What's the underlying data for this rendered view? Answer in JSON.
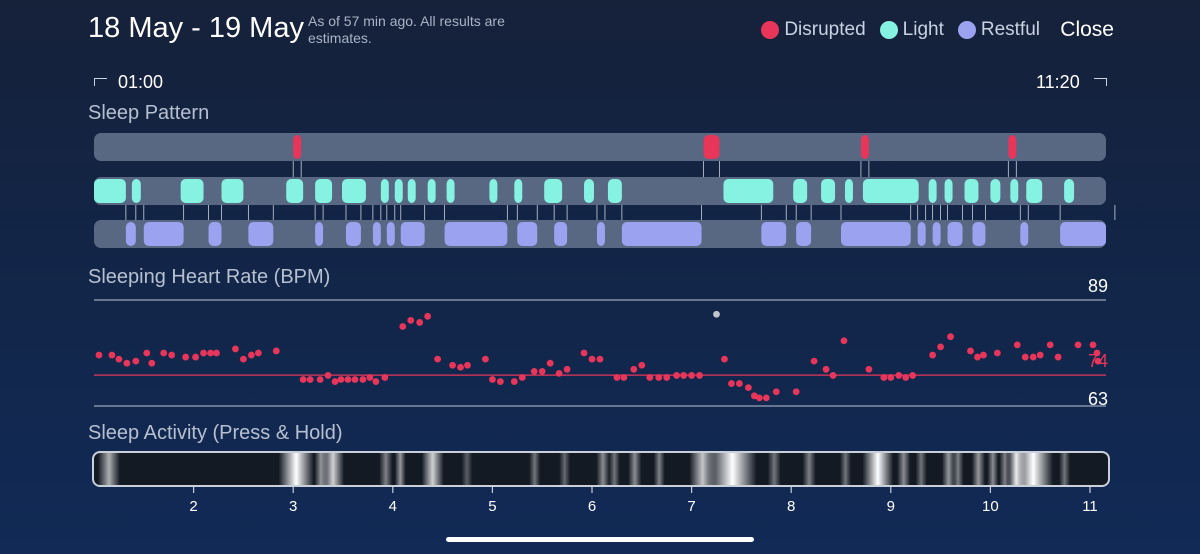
{
  "header": {
    "title": "18 May - 19 May",
    "note": "As of 57 min ago. All results are estimates.",
    "close_label": "Close"
  },
  "legend": [
    {
      "label": "Disrupted",
      "color": "#e8355a"
    },
    {
      "label": "Light",
      "color": "#86f2e2"
    },
    {
      "label": "Restful",
      "color": "#9ba3f0"
    }
  ],
  "time_range": {
    "start": "01:00",
    "end": "11:20"
  },
  "sleep_pattern": {
    "title": "Sleep Pattern",
    "colors": {
      "track": "#586883",
      "disrupted": "#e8355a",
      "light": "#86f2e2",
      "restful": "#9ba3f0"
    },
    "segments": {
      "disrupted": [
        [
          2.0,
          2.08
        ],
        [
          6.12,
          6.28
        ],
        [
          7.7,
          7.78
        ],
        [
          9.18,
          9.26
        ]
      ],
      "light": [
        [
          0.0,
          0.32
        ],
        [
          0.38,
          0.47
        ],
        [
          0.87,
          1.1
        ],
        [
          1.28,
          1.5
        ],
        [
          1.93,
          2.1
        ],
        [
          2.22,
          2.39
        ],
        [
          2.49,
          2.73
        ],
        [
          2.88,
          2.96
        ],
        [
          3.02,
          3.1
        ],
        [
          3.15,
          3.23
        ],
        [
          3.35,
          3.43
        ],
        [
          3.54,
          3.62
        ],
        [
          3.97,
          4.05
        ],
        [
          4.22,
          4.3
        ],
        [
          4.52,
          4.7
        ],
        [
          4.92,
          5.02
        ],
        [
          5.16,
          5.3
        ],
        [
          6.32,
          6.82
        ],
        [
          7.02,
          7.16
        ],
        [
          7.3,
          7.44
        ],
        [
          7.54,
          7.62
        ],
        [
          7.72,
          8.28
        ],
        [
          8.38,
          8.46
        ],
        [
          8.54,
          8.62
        ],
        [
          8.74,
          8.88
        ],
        [
          9.0,
          9.1
        ],
        [
          9.2,
          9.28
        ],
        [
          9.36,
          9.52
        ],
        [
          9.74,
          9.84
        ],
        [
          10.18,
          10.26
        ]
      ],
      "restful": [
        [
          0.32,
          0.42
        ],
        [
          0.5,
          0.9
        ],
        [
          1.15,
          1.28
        ],
        [
          1.55,
          1.8
        ],
        [
          2.22,
          2.3
        ],
        [
          2.53,
          2.68
        ],
        [
          2.8,
          2.88
        ],
        [
          2.94,
          3.02
        ],
        [
          3.08,
          3.32
        ],
        [
          3.52,
          4.15
        ],
        [
          4.25,
          4.45
        ],
        [
          4.62,
          4.75
        ],
        [
          5.05,
          5.13
        ],
        [
          5.3,
          6.1
        ],
        [
          6.7,
          6.95
        ],
        [
          7.05,
          7.2
        ],
        [
          7.5,
          8.2
        ],
        [
          8.27,
          8.35
        ],
        [
          8.42,
          8.5
        ],
        [
          8.57,
          8.72
        ],
        [
          8.82,
          8.95
        ],
        [
          9.3,
          9.38
        ],
        [
          9.7,
          10.25
        ]
      ]
    }
  },
  "heart_rate": {
    "title": "Sleeping Heart Rate (BPM)",
    "max_label": "89",
    "avg_label": "74",
    "min_label": "63",
    "color": "#e8355a",
    "grid_color": "#9aa5b8",
    "outlier": {
      "x": 6.25,
      "y": 85.5,
      "color": "#bfc4cc"
    },
    "points": [
      [
        0.05,
        75.5
      ],
      [
        0.18,
        75.5
      ],
      [
        0.25,
        74.5
      ],
      [
        0.33,
        73.5
      ],
      [
        0.42,
        74
      ],
      [
        0.53,
        76
      ],
      [
        0.58,
        73.5
      ],
      [
        0.7,
        76
      ],
      [
        0.78,
        75.5
      ],
      [
        0.92,
        75
      ],
      [
        1.02,
        75
      ],
      [
        1.1,
        76
      ],
      [
        1.17,
        76
      ],
      [
        1.23,
        76
      ],
      [
        1.42,
        77
      ],
      [
        1.5,
        74.5
      ],
      [
        1.58,
        75.5
      ],
      [
        1.65,
        76
      ],
      [
        1.83,
        76.5
      ],
      [
        2.1,
        69.5
      ],
      [
        2.17,
        69.5
      ],
      [
        2.27,
        69.5
      ],
      [
        2.35,
        70.5
      ],
      [
        2.42,
        69
      ],
      [
        2.48,
        69.5
      ],
      [
        2.55,
        69.5
      ],
      [
        2.62,
        69.5
      ],
      [
        2.7,
        69.5
      ],
      [
        2.77,
        70
      ],
      [
        2.83,
        69
      ],
      [
        2.92,
        70
      ],
      [
        3.1,
        82.5
      ],
      [
        3.18,
        84
      ],
      [
        3.27,
        83.5
      ],
      [
        3.35,
        85
      ],
      [
        3.45,
        74.5
      ],
      [
        3.6,
        73
      ],
      [
        3.68,
        72.5
      ],
      [
        3.75,
        73
      ],
      [
        3.93,
        74.5
      ],
      [
        4.0,
        69.5
      ],
      [
        4.08,
        69
      ],
      [
        4.22,
        69
      ],
      [
        4.3,
        70
      ],
      [
        4.42,
        71.5
      ],
      [
        4.5,
        71.5
      ],
      [
        4.58,
        73.5
      ],
      [
        4.67,
        71
      ],
      [
        4.75,
        72
      ],
      [
        4.92,
        76
      ],
      [
        5.0,
        74.5
      ],
      [
        5.08,
        74.5
      ],
      [
        5.25,
        70
      ],
      [
        5.32,
        70
      ],
      [
        5.42,
        72
      ],
      [
        5.5,
        73
      ],
      [
        5.58,
        70
      ],
      [
        5.67,
        70
      ],
      [
        5.75,
        70
      ],
      [
        5.85,
        70.5
      ],
      [
        5.92,
        70.5
      ],
      [
        6.0,
        70.5
      ],
      [
        6.08,
        70.5
      ],
      [
        6.33,
        74.5
      ],
      [
        6.4,
        68.5
      ],
      [
        6.48,
        68.5
      ],
      [
        6.57,
        67.5
      ],
      [
        6.63,
        65.5
      ],
      [
        6.68,
        65
      ],
      [
        6.75,
        65
      ],
      [
        6.85,
        66.5
      ],
      [
        7.05,
        66.5
      ],
      [
        7.23,
        74
      ],
      [
        7.35,
        72
      ],
      [
        7.42,
        70.5
      ],
      [
        7.53,
        79
      ],
      [
        7.78,
        72
      ],
      [
        7.93,
        70
      ],
      [
        8.0,
        70
      ],
      [
        8.08,
        70.5
      ],
      [
        8.15,
        70
      ],
      [
        8.22,
        70.5
      ],
      [
        8.42,
        75.5
      ],
      [
        8.5,
        77.5
      ],
      [
        8.6,
        80
      ],
      [
        8.8,
        76.5
      ],
      [
        8.87,
        75
      ],
      [
        8.93,
        75.5
      ],
      [
        9.07,
        76
      ],
      [
        9.27,
        78
      ],
      [
        9.35,
        75
      ],
      [
        9.43,
        75
      ],
      [
        9.5,
        75.5
      ],
      [
        9.6,
        78
      ],
      [
        9.68,
        75
      ],
      [
        9.88,
        78
      ],
      [
        10.03,
        78
      ],
      [
        10.07,
        76
      ],
      [
        10.08,
        74
      ]
    ]
  },
  "activity": {
    "title": "Sleep Activity (Press & Hold)",
    "x_ticks": [
      "2",
      "3",
      "4",
      "5",
      "6",
      "7",
      "8",
      "9",
      "10",
      "11"
    ],
    "bright_bands": [
      {
        "x": 0.1,
        "w": 0.1,
        "a": 0.65
      },
      {
        "x": 1.95,
        "w": 0.16,
        "a": 1.0
      },
      {
        "x": 2.25,
        "w": 0.06,
        "a": 0.55
      },
      {
        "x": 2.35,
        "w": 0.1,
        "a": 0.8
      },
      {
        "x": 2.9,
        "w": 0.06,
        "a": 0.45
      },
      {
        "x": 3.05,
        "w": 0.05,
        "a": 0.55
      },
      {
        "x": 3.35,
        "w": 0.1,
        "a": 0.8
      },
      {
        "x": 3.72,
        "w": 0.05,
        "a": 0.3
      },
      {
        "x": 4.4,
        "w": 0.05,
        "a": 0.4
      },
      {
        "x": 4.7,
        "w": 0.05,
        "a": 0.35
      },
      {
        "x": 5.08,
        "w": 0.06,
        "a": 0.5
      },
      {
        "x": 5.2,
        "w": 0.05,
        "a": 0.4
      },
      {
        "x": 5.4,
        "w": 0.06,
        "a": 0.5
      },
      {
        "x": 5.65,
        "w": 0.05,
        "a": 0.45
      },
      {
        "x": 6.05,
        "w": 0.12,
        "a": 0.75
      },
      {
        "x": 6.3,
        "w": 0.22,
        "a": 1.0
      },
      {
        "x": 6.8,
        "w": 0.06,
        "a": 0.4
      },
      {
        "x": 7.15,
        "w": 0.06,
        "a": 0.45
      },
      {
        "x": 7.52,
        "w": 0.05,
        "a": 0.4
      },
      {
        "x": 7.8,
        "w": 0.14,
        "a": 1.0
      },
      {
        "x": 8.1,
        "w": 0.06,
        "a": 0.5
      },
      {
        "x": 8.28,
        "w": 0.05,
        "a": 0.4
      },
      {
        "x": 8.55,
        "w": 0.06,
        "a": 0.55
      },
      {
        "x": 8.65,
        "w": 0.05,
        "a": 0.45
      },
      {
        "x": 8.85,
        "w": 0.06,
        "a": 0.55
      },
      {
        "x": 9.0,
        "w": 0.05,
        "a": 0.5
      },
      {
        "x": 9.12,
        "w": 0.05,
        "a": 0.45
      },
      {
        "x": 9.22,
        "w": 0.08,
        "a": 0.9
      },
      {
        "x": 9.34,
        "w": 0.18,
        "a": 1.0
      },
      {
        "x": 9.72,
        "w": 0.05,
        "a": 0.4
      }
    ]
  }
}
